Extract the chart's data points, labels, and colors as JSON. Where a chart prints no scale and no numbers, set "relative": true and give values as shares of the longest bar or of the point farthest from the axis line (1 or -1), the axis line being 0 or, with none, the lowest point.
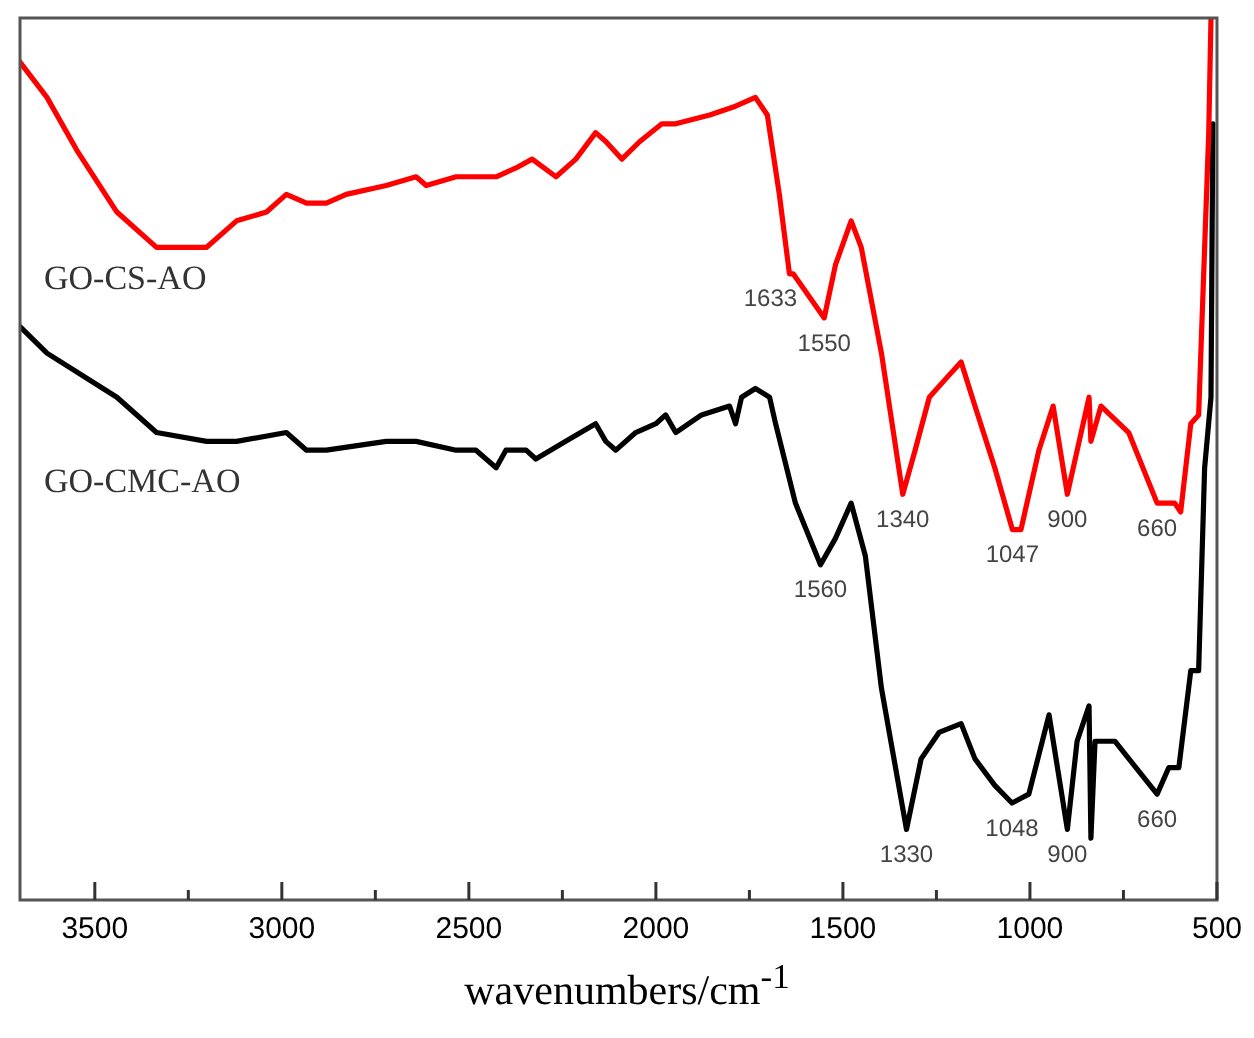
{
  "chart_data": {
    "type": "line",
    "xlabel": "wavenumbers/cm$^{-1}$",
    "relative": true,
    "legend": false,
    "grid": false,
    "marker": "none",
    "xlim": [
      3700,
      500
    ],
    "xticks": [
      3500,
      {
        "value": 3250,
        "label": null
      },
      3000,
      {
        "value": 2750,
        "label": null
      },
      2500,
      {
        "value": 2250,
        "label": null
      },
      2000,
      {
        "value": 1750,
        "label": null
      },
      1500,
      {
        "value": 1250,
        "label": null
      },
      1000,
      {
        "value": 750,
        "label": null
      },
      500
    ],
    "series": [
      {
        "name": "GO-CS-AO",
        "color": "#ff0000",
        "x": [
          3700,
          3628,
          3548,
          3441,
          3335,
          3255,
          3201,
          3121,
          3041,
          2988,
          2934,
          2881,
          2828,
          2721,
          2641,
          2614,
          2534,
          2427,
          2374,
          2331,
          2267,
          2214,
          2161,
          2134,
          2091,
          2043,
          1984,
          1947,
          1856,
          1787,
          1734,
          1702,
          1670,
          1643,
          1633,
          1550,
          1520,
          1478,
          1451,
          1397,
          1340,
          1307,
          1269,
          1227,
          1184,
          1147,
          1094,
          1047,
          1024,
          976,
          938,
          900,
          842,
          837,
          810,
          736,
          660,
          613,
          597,
          570,
          549,
          522,
          516
        ],
        "values": [
          0.95,
          0.91,
          0.85,
          0.78,
          0.74,
          0.74,
          0.74,
          0.77,
          0.78,
          0.8,
          0.79,
          0.79,
          0.8,
          0.81,
          0.82,
          0.81,
          0.82,
          0.82,
          0.83,
          0.84,
          0.82,
          0.84,
          0.87,
          0.86,
          0.84,
          0.86,
          0.88,
          0.88,
          0.89,
          0.9,
          0.91,
          0.89,
          0.8,
          0.71,
          0.71,
          0.66,
          0.72,
          0.77,
          0.74,
          0.62,
          0.46,
          0.51,
          0.57,
          0.59,
          0.61,
          0.56,
          0.49,
          0.42,
          0.42,
          0.51,
          0.56,
          0.46,
          0.57,
          0.52,
          0.56,
          0.53,
          0.45,
          0.45,
          0.44,
          0.54,
          0.55,
          0.87,
          1
        ]
      },
      {
        "name": "GO-CMC-AO",
        "color": "#000000",
        "x": [
          3700,
          3628,
          3441,
          3335,
          3201,
          3121,
          2988,
          2934,
          2881,
          2721,
          2641,
          2534,
          2481,
          2427,
          2401,
          2347,
          2321,
          2241,
          2161,
          2134,
          2107,
          2054,
          2000,
          1974,
          1947,
          1878,
          1803,
          1787,
          1771,
          1734,
          1696,
          1680,
          1627,
          1560,
          1520,
          1478,
          1440,
          1397,
          1330,
          1291,
          1243,
          1184,
          1147,
          1094,
          1048,
          1003,
          949,
          900,
          874,
          842,
          837,
          826,
          773,
          660,
          629,
          602,
          570,
          549,
          533,
          516,
          511
        ],
        "values": [
          0.65,
          0.62,
          0.57,
          0.53,
          0.52,
          0.52,
          0.53,
          0.51,
          0.51,
          0.52,
          0.52,
          0.51,
          0.51,
          0.49,
          0.51,
          0.51,
          0.5,
          0.52,
          0.54,
          0.52,
          0.51,
          0.53,
          0.54,
          0.55,
          0.53,
          0.55,
          0.56,
          0.54,
          0.57,
          0.58,
          0.57,
          0.54,
          0.45,
          0.38,
          0.41,
          0.45,
          0.39,
          0.24,
          0.08,
          0.16,
          0.19,
          0.2,
          0.16,
          0.13,
          0.11,
          0.12,
          0.21,
          0.08,
          0.18,
          0.22,
          0.07,
          0.18,
          0.18,
          0.12,
          0.15,
          0.15,
          0.26,
          0.26,
          0.49,
          0.57,
          0.88
        ]
      }
    ],
    "annotations": [
      {
        "text": "1633",
        "x": 1633,
        "y": 0.71
      },
      {
        "text": "1550",
        "x": 1550,
        "y": 0.66
      },
      {
        "text": "1340",
        "x": 1340,
        "y": 0.46
      },
      {
        "text": "1047",
        "x": 1047,
        "y": 0.42
      },
      {
        "text": "900",
        "x": 900,
        "y": 0.46
      },
      {
        "text": "660",
        "x": 660,
        "y": 0.45
      },
      {
        "text": "1560",
        "x": 1560,
        "y": 0.38
      },
      {
        "text": "1330",
        "x": 1330,
        "y": 0.08
      },
      {
        "text": "1048",
        "x": 1048,
        "y": 0.11
      },
      {
        "text": "900",
        "x": 900,
        "y": 0.08
      },
      {
        "text": "660",
        "x": 660,
        "y": 0.12
      }
    ]
  }
}
